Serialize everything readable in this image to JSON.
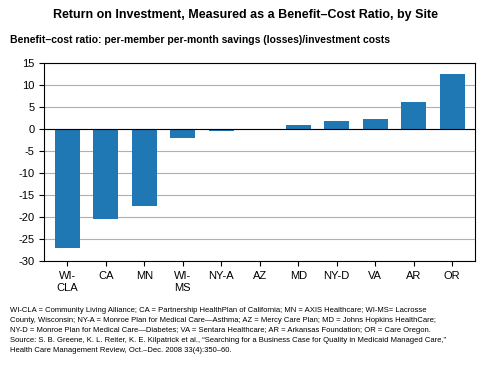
{
  "chart_data": {
    "type": "bar",
    "title": "Return on Investment, Measured as a Benefit–Cost Ratio, by Site",
    "subtitle": "Benefit–cost ratio: per-member per-month savings (losses)/investment costs",
    "categories": [
      "WI-\nCLA",
      "CA",
      "MN",
      "WI-\nMS",
      "NY-A",
      "AZ",
      "MD",
      "NY-D",
      "VA",
      "AR",
      "OR"
    ],
    "values": [
      -27.0,
      -20.5,
      -17.5,
      -2.0,
      -0.5,
      -0.3,
      0.8,
      1.8,
      2.3,
      6.0,
      12.5
    ],
    "ylim": [
      -30,
      15
    ],
    "yticks": [
      -30,
      -25,
      -20,
      -15,
      -10,
      -5,
      0,
      5,
      10,
      15
    ],
    "grid": true,
    "notes": [
      "WI-CLA = Community Living Alliance; CA = Partnership HealthPlan of California; MN = AXIS Healthcare; WI-MS= Lacrosse",
      "County, Wisconsin; NY-A = Monroe Plan for Medical Care—Asthma; AZ = Mercy Care Plan; MD = Johns Hopkins HealthCare;",
      "NY-D = Monroe Plan for Medical Care—Diabetes; VA = Sentara Healthcare; AR = Arkansas Foundation; OR = Care Oregon.",
      "Source: S. B. Greene, K. L. Reiter, K. E. Kilpatrick et al., “Searching for a Business Case for Quality in Medicaid Managed Care,”",
      "Health Care Management Review, Oct.–Dec. 2008 33(4):350–60."
    ]
  }
}
